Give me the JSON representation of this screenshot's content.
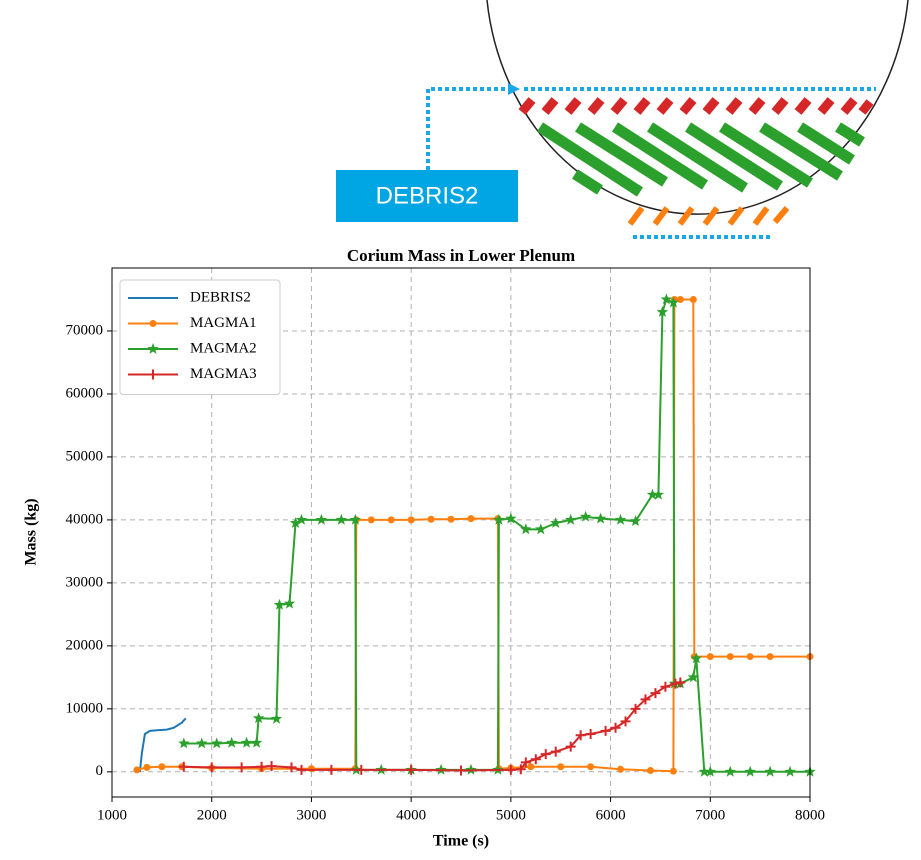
{
  "chart_data": {
    "type": "line",
    "title": "Corium Mass in Lower Plenum",
    "xlabel": "Time (s)",
    "ylabel": "Mass (kg)",
    "annotation": "DEBRIS2",
    "xlim": [
      1000,
      8000
    ],
    "ylim": [
      -4000,
      80000
    ],
    "xticks": [
      1000,
      2000,
      3000,
      4000,
      5000,
      6000,
      7000,
      8000
    ],
    "yticks": [
      0,
      10000,
      20000,
      30000,
      40000,
      50000,
      60000,
      70000
    ],
    "grid": true,
    "legend": "upper left",
    "series": [
      {
        "name": "DEBRIS2",
        "color": "#1f77b4",
        "marker": "none",
        "x": [
          1280,
          1300,
          1330,
          1380,
          1450,
          1550,
          1620,
          1700,
          1740
        ],
        "values": [
          0,
          3000,
          6000,
          6500,
          6600,
          6700,
          7000,
          7800,
          8500
        ]
      },
      {
        "name": "MAGMA1",
        "color": "#ff7f0e",
        "marker": "circle",
        "x": [
          1250,
          1350,
          1500,
          1700,
          2000,
          2500,
          3000,
          3440,
          3450,
          3600,
          3800,
          4000,
          4200,
          4400,
          4600,
          4870,
          4880,
          5000,
          5200,
          5500,
          5800,
          6100,
          6400,
          6630,
          6640,
          6700,
          6830,
          6840,
          7000,
          7200,
          7400,
          7600,
          8000
        ],
        "values": [
          300,
          700,
          800,
          800,
          600,
          500,
          500,
          500,
          40000,
          40000,
          40000,
          40000,
          40100,
          40100,
          40200,
          40200,
          500,
          600,
          800,
          800,
          800,
          400,
          200,
          100,
          75000,
          75000,
          75000,
          18300,
          18300,
          18300,
          18300,
          18300,
          18300
        ]
      },
      {
        "name": "MAGMA2",
        "color": "#2ca02c",
        "marker": "star",
        "x": [
          1720,
          1900,
          2050,
          2200,
          2350,
          2450,
          2470,
          2650,
          2680,
          2780,
          2840,
          2900,
          3100,
          3300,
          3440,
          3450,
          3700,
          4000,
          4300,
          4600,
          4870,
          4880,
          5000,
          5150,
          5300,
          5450,
          5600,
          5750,
          5900,
          6100,
          6250,
          6420,
          6480,
          6520,
          6560,
          6630,
          6640,
          6700,
          6830,
          6860,
          6940,
          7000,
          7200,
          7400,
          7600,
          7800,
          8000
        ],
        "values": [
          4500,
          4500,
          4500,
          4600,
          4600,
          4600,
          8500,
          8400,
          26500,
          26700,
          39500,
          40000,
          40000,
          40000,
          40000,
          300,
          300,
          300,
          300,
          300,
          300,
          40000,
          40200,
          38500,
          38500,
          39500,
          40000,
          40500,
          40200,
          40000,
          39800,
          44000,
          44000,
          73000,
          75000,
          74500,
          14000,
          14000,
          15000,
          18000,
          0,
          0,
          0,
          0,
          0,
          0,
          0
        ]
      },
      {
        "name": "MAGMA3",
        "color": "#d62728",
        "marker": "plus",
        "x": [
          1720,
          2000,
          2300,
          2500,
          2600,
          2800,
          2900,
          3200,
          3500,
          4000,
          4500,
          5000,
          5100,
          5150,
          5250,
          5350,
          5450,
          5600,
          5700,
          5800,
          5950,
          6050,
          6150,
          6250,
          6350,
          6450,
          6550,
          6650,
          6700
        ],
        "values": [
          800,
          700,
          700,
          800,
          900,
          700,
          300,
          300,
          300,
          300,
          200,
          300,
          400,
          1500,
          2000,
          2800,
          3200,
          4000,
          5800,
          6000,
          6500,
          7000,
          8000,
          10000,
          11500,
          12500,
          13500,
          14000,
          14200
        ]
      }
    ]
  }
}
